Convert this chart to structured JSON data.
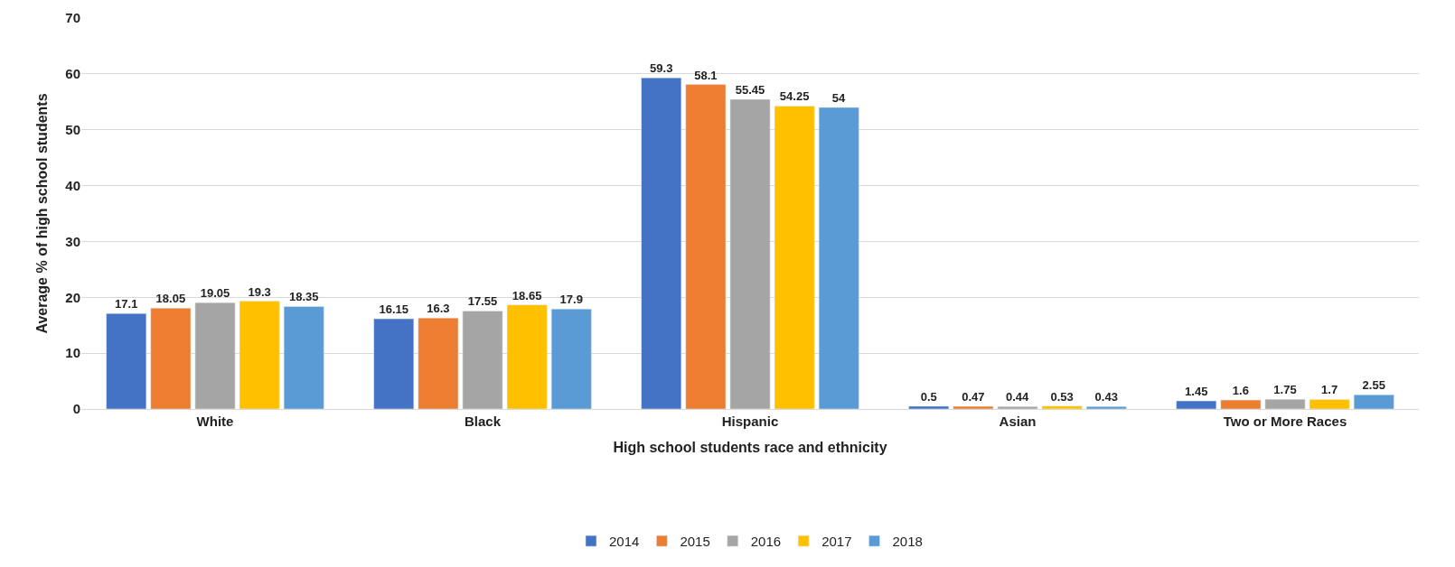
{
  "chart_data": {
    "type": "bar",
    "xlabel": "High school students race and ethnicity",
    "ylabel": "Average % of high school students",
    "categories": [
      "White",
      "Black",
      "Hispanic",
      "Asian",
      "Two or More Races"
    ],
    "series": [
      {
        "name": "2014",
        "color": "#4472c4",
        "values": [
          17.1,
          16.15,
          59.3,
          0.5,
          1.45
        ]
      },
      {
        "name": "2015",
        "color": "#ed7d31",
        "values": [
          18.05,
          16.3,
          58.1,
          0.47,
          1.6
        ]
      },
      {
        "name": "2016",
        "color": "#a5a5a5",
        "values": [
          19.05,
          17.55,
          55.45,
          0.44,
          1.75
        ]
      },
      {
        "name": "2017",
        "color": "#ffc000",
        "values": [
          19.3,
          18.65,
          54.25,
          0.53,
          1.7
        ]
      },
      {
        "name": "2018",
        "color": "#5b9bd5",
        "values": [
          18.35,
          17.9,
          54,
          0.43,
          2.55
        ]
      }
    ],
    "ylim": [
      0,
      70
    ],
    "yticks": [
      0,
      10,
      20,
      30,
      40,
      50,
      60,
      70
    ],
    "grid": "y",
    "legend": "bottom",
    "data_labels": true
  }
}
